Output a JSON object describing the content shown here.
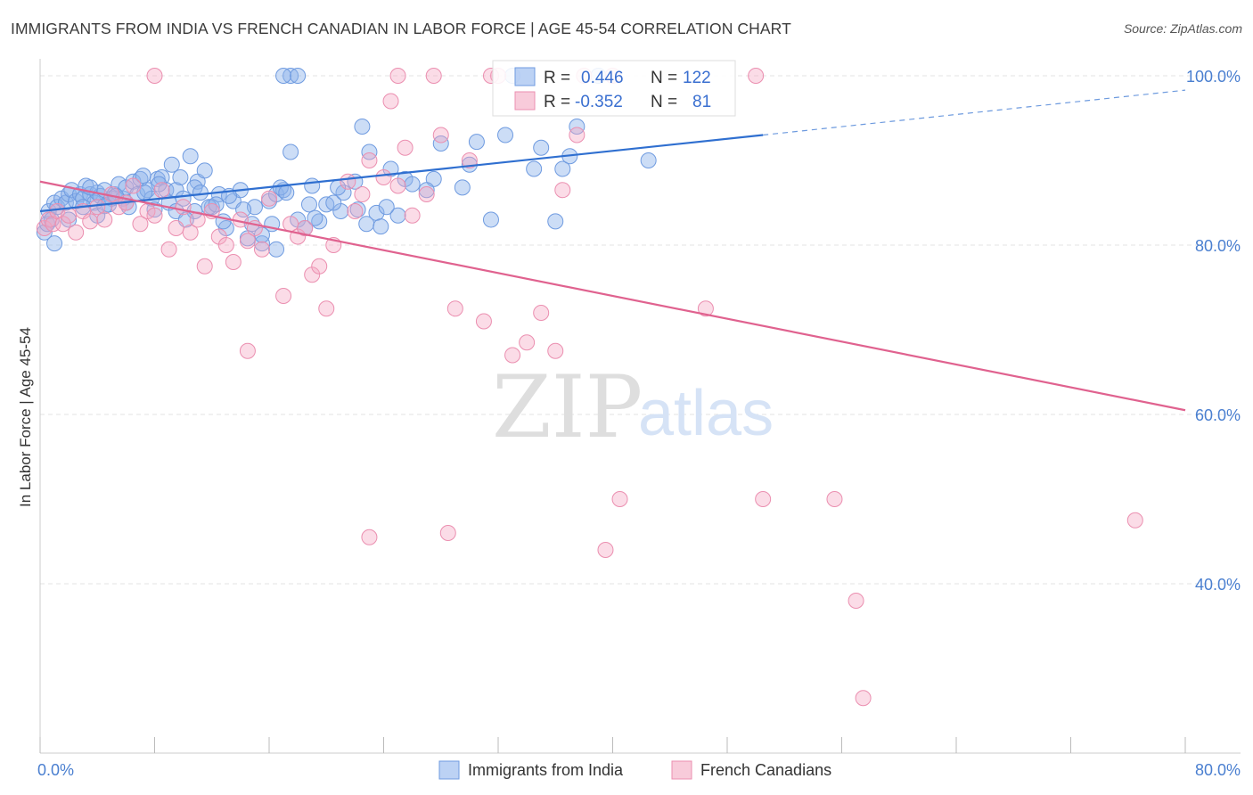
{
  "title": "IMMIGRANTS FROM INDIA VS FRENCH CANADIAN IN LABOR FORCE | AGE 45-54 CORRELATION CHART",
  "source": "Source: ZipAtlas.com",
  "watermark": {
    "zip": "ZIP",
    "atlas": "atlas"
  },
  "chart_data": {
    "type": "scatter",
    "title": "IMMIGRANTS FROM INDIA VS FRENCH CANADIAN IN LABOR FORCE | AGE 45-54 CORRELATION CHART",
    "xlabel": "",
    "ylabel": "In Labor Force | Age 45-54",
    "xlim": [
      0,
      80
    ],
    "ylim": [
      20,
      102
    ],
    "x_tick_labels": [
      "0.0%",
      "80.0%"
    ],
    "y_ticks": [
      40,
      60,
      80,
      100
    ],
    "y_tick_labels": [
      "40.0%",
      "60.0%",
      "80.0%",
      "100.0%"
    ],
    "grid": true,
    "legend_position": "bottom",
    "series": [
      {
        "name": "Immigrants from India",
        "color": "#8fb4ec",
        "line_color": "#2f6fd0",
        "R": "0.446",
        "N": "122",
        "trend": {
          "x0": 0,
          "y0": 84.0,
          "x1": 50.5,
          "y1": 93.0,
          "dash_x1": 80,
          "dash_y1": 98.3
        },
        "points": [
          [
            0.3,
            81.5
          ],
          [
            0.5,
            82.5
          ],
          [
            0.6,
            84
          ],
          [
            0.8,
            83
          ],
          [
            1.0,
            85
          ],
          [
            1.2,
            84.5
          ],
          [
            1.5,
            85.5
          ],
          [
            1.8,
            85
          ],
          [
            2.0,
            86
          ],
          [
            2.2,
            86.5
          ],
          [
            2.5,
            85.2
          ],
          [
            2.8,
            86
          ],
          [
            3.0,
            85.5
          ],
          [
            3.2,
            87
          ],
          [
            3.5,
            86
          ],
          [
            3.8,
            85
          ],
          [
            4.0,
            86.2
          ],
          [
            4.2,
            85.8
          ],
          [
            4.5,
            86.5
          ],
          [
            4.8,
            84.8
          ],
          [
            5.0,
            85.5
          ],
          [
            5.2,
            86
          ],
          [
            5.5,
            87.2
          ],
          [
            5.8,
            85.5
          ],
          [
            6.0,
            86.8
          ],
          [
            6.2,
            84.5
          ],
          [
            6.5,
            87.5
          ],
          [
            6.8,
            86
          ],
          [
            7.0,
            87.8
          ],
          [
            7.2,
            88.2
          ],
          [
            7.5,
            86.5
          ],
          [
            7.8,
            85.5
          ],
          [
            8.0,
            84.2
          ],
          [
            8.2,
            87.8
          ],
          [
            8.5,
            88
          ],
          [
            8.8,
            86.5
          ],
          [
            9.0,
            85
          ],
          [
            9.2,
            89.5
          ],
          [
            9.5,
            86.5
          ],
          [
            9.8,
            88
          ],
          [
            10.0,
            85.5
          ],
          [
            10.5,
            90.5
          ],
          [
            10.8,
            84
          ],
          [
            11.0,
            87.5
          ],
          [
            11.5,
            88.8
          ],
          [
            12.0,
            84.5
          ],
          [
            12.5,
            86
          ],
          [
            13.0,
            82
          ],
          [
            13.5,
            85.2
          ],
          [
            14.0,
            86.5
          ],
          [
            14.5,
            80.8
          ],
          [
            15.0,
            84.5
          ],
          [
            15.5,
            80.2
          ],
          [
            16.0,
            85.2
          ],
          [
            16.5,
            86
          ],
          [
            17.0,
            86.5
          ],
          [
            17.5,
            91
          ],
          [
            18.0,
            83
          ],
          [
            18.5,
            82
          ],
          [
            19.0,
            87
          ],
          [
            20.0,
            84.8
          ],
          [
            21.0,
            84
          ],
          [
            22.0,
            87.5
          ],
          [
            22.5,
            94
          ],
          [
            23.0,
            91
          ],
          [
            23.5,
            83.8
          ],
          [
            24.5,
            89
          ],
          [
            25.5,
            87.8
          ],
          [
            27.5,
            87.8
          ],
          [
            28.0,
            92
          ],
          [
            29.5,
            86.8
          ],
          [
            30.0,
            89.5
          ],
          [
            30.5,
            92.2
          ],
          [
            31.5,
            83
          ],
          [
            32.5,
            93
          ],
          [
            33.0,
            100
          ],
          [
            34.5,
            89
          ],
          [
            35.0,
            91.5
          ],
          [
            36.0,
            82.8
          ],
          [
            36.5,
            89
          ],
          [
            37.0,
            90.5
          ],
          [
            37.5,
            94
          ],
          [
            17.5,
            100
          ],
          [
            17.0,
            100
          ],
          [
            18.0,
            100
          ],
          [
            1.0,
            80.2
          ],
          [
            2.0,
            83
          ],
          [
            3.0,
            84.5
          ],
          [
            4.0,
            83.5
          ],
          [
            6.0,
            85
          ],
          [
            9.5,
            84
          ],
          [
            10.2,
            83
          ],
          [
            11.8,
            84.5
          ],
          [
            12.8,
            82.8
          ],
          [
            14.2,
            84.2
          ],
          [
            15.5,
            81.2
          ],
          [
            16.2,
            82.5
          ],
          [
            16.8,
            86.8
          ],
          [
            17.2,
            86.2
          ],
          [
            19.5,
            82.8
          ],
          [
            20.5,
            85
          ],
          [
            21.2,
            86.2
          ],
          [
            22.8,
            82.5
          ],
          [
            25.0,
            83.5
          ],
          [
            26.0,
            87.2
          ],
          [
            27.0,
            86.5
          ],
          [
            3.5,
            86.8
          ],
          [
            4.5,
            84.6
          ],
          [
            5.3,
            85.8
          ],
          [
            7.3,
            86.2
          ],
          [
            8.3,
            87.2
          ],
          [
            10.8,
            86.8
          ],
          [
            11.2,
            86.2
          ],
          [
            12.3,
            84.8
          ],
          [
            13.2,
            85.8
          ],
          [
            14.8,
            82.5
          ],
          [
            16.5,
            79.5
          ],
          [
            18.8,
            84.8
          ],
          [
            19.2,
            83.2
          ],
          [
            20.8,
            86.8
          ],
          [
            22.2,
            84.2
          ],
          [
            23.8,
            82.2
          ],
          [
            24.2,
            84.5
          ],
          [
            42.5,
            90
          ],
          [
            39.0,
            100
          ]
        ]
      },
      {
        "name": "French Canadians",
        "color": "#f4a8c2",
        "line_color": "#e0628f",
        "R": "-0.352",
        "N": "81",
        "trend": {
          "x0": 0,
          "y0": 87.5,
          "x1": 80,
          "y1": 60.5
        },
        "points": [
          [
            0.3,
            82
          ],
          [
            0.6,
            83
          ],
          [
            0.9,
            82.5
          ],
          [
            1.2,
            84
          ],
          [
            1.6,
            82.5
          ],
          [
            2.0,
            83.5
          ],
          [
            2.5,
            81.5
          ],
          [
            3.0,
            84
          ],
          [
            3.5,
            82.8
          ],
          [
            4.0,
            84.5
          ],
          [
            4.5,
            83
          ],
          [
            5.0,
            86
          ],
          [
            5.5,
            84.5
          ],
          [
            6.0,
            85
          ],
          [
            6.5,
            87
          ],
          [
            7.0,
            82.5
          ],
          [
            7.5,
            84
          ],
          [
            8.0,
            83.5
          ],
          [
            8.5,
            86.5
          ],
          [
            9.0,
            79.5
          ],
          [
            9.5,
            82
          ],
          [
            10.0,
            84.5
          ],
          [
            10.5,
            81.5
          ],
          [
            11.0,
            83
          ],
          [
            11.5,
            77.5
          ],
          [
            12.0,
            84
          ],
          [
            12.5,
            81
          ],
          [
            13.0,
            80
          ],
          [
            13.5,
            78
          ],
          [
            14.0,
            83
          ],
          [
            14.5,
            80.5
          ],
          [
            15.0,
            82
          ],
          [
            15.5,
            79.5
          ],
          [
            16.0,
            85.5
          ],
          [
            17.0,
            74
          ],
          [
            17.5,
            82.5
          ],
          [
            18.0,
            81
          ],
          [
            18.5,
            82
          ],
          [
            19.0,
            76.5
          ],
          [
            19.5,
            77.5
          ],
          [
            20.0,
            72.5
          ],
          [
            20.5,
            80
          ],
          [
            21.5,
            87.5
          ],
          [
            22.0,
            84
          ],
          [
            22.5,
            86
          ],
          [
            23.0,
            90
          ],
          [
            24.0,
            88
          ],
          [
            24.5,
            97
          ],
          [
            25.0,
            87
          ],
          [
            25.5,
            91.5
          ],
          [
            26.0,
            83.5
          ],
          [
            27.0,
            86
          ],
          [
            28.0,
            93
          ],
          [
            29.0,
            72.5
          ],
          [
            30.0,
            90
          ],
          [
            31.0,
            71
          ],
          [
            32.0,
            100
          ],
          [
            33.0,
            67
          ],
          [
            34.0,
            68.5
          ],
          [
            35.0,
            72
          ],
          [
            36.0,
            67.5
          ],
          [
            36.5,
            86.5
          ],
          [
            37.5,
            93
          ],
          [
            40.0,
            100
          ],
          [
            46.5,
            72.5
          ],
          [
            50.0,
            100
          ],
          [
            8.0,
            100
          ],
          [
            25.0,
            100
          ],
          [
            31.5,
            100
          ],
          [
            14.5,
            67.5
          ],
          [
            23.0,
            45.5
          ],
          [
            28.5,
            46
          ],
          [
            39.5,
            44
          ],
          [
            40.5,
            50
          ],
          [
            50.5,
            50
          ],
          [
            55.5,
            50
          ],
          [
            57.0,
            38
          ],
          [
            57.5,
            26.5
          ],
          [
            76.5,
            47.5
          ],
          [
            27.5,
            100
          ],
          [
            38.0,
            100
          ]
        ]
      }
    ]
  },
  "legend": {
    "items": [
      {
        "label": "Immigrants from India",
        "color": "#8fb4ec"
      },
      {
        "label": "French Canadians",
        "color": "#f4a8c2"
      }
    ]
  },
  "stats": {
    "r_label": "R =",
    "n_label": "N =",
    "rows": [
      {
        "r": "0.446",
        "n": "122",
        "color": "#8fb4ec"
      },
      {
        "r": "-0.352",
        "n": "81",
        "color": "#f4a8c2"
      }
    ]
  }
}
